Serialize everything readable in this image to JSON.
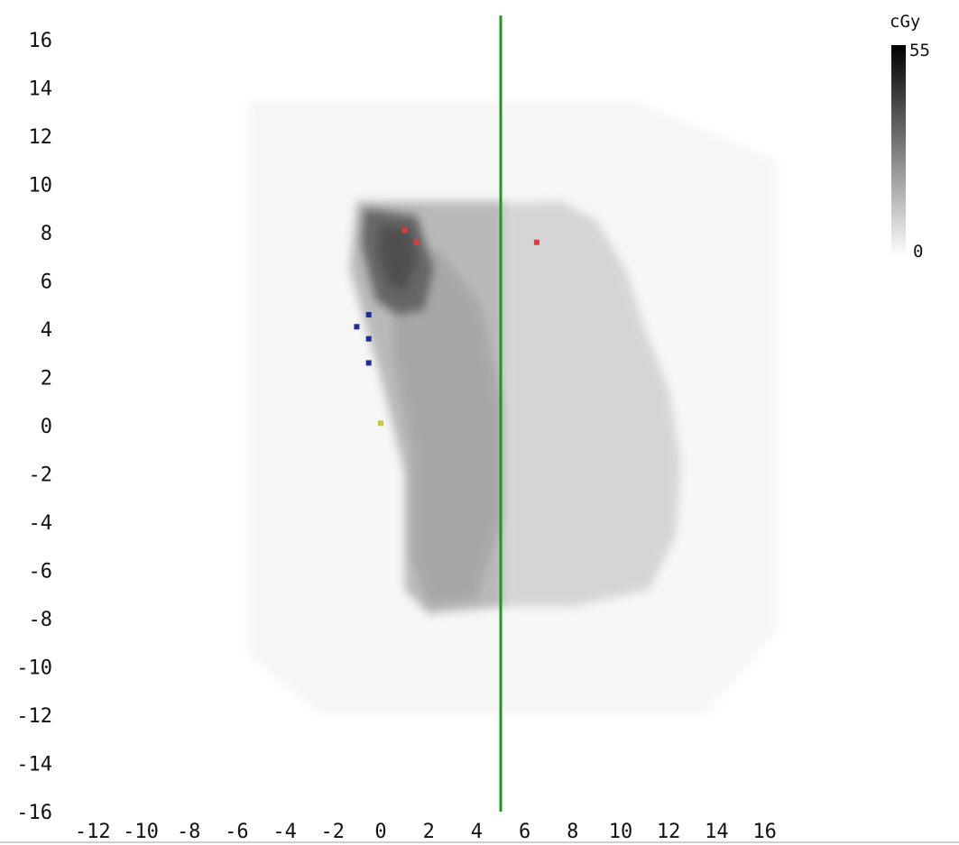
{
  "chart_data": {
    "type": "heatmap",
    "colorbar": {
      "unit": "cGy",
      "max_label": "55",
      "min_label": "0",
      "min": 0,
      "max": 55,
      "color_low": "#ffffff",
      "color_high": "#000000"
    },
    "x_ticks": [
      "-12",
      "-10",
      "-8",
      "-6",
      "-4",
      "-2",
      "0",
      "2",
      "4",
      "6",
      "8",
      "10",
      "12",
      "14",
      "16"
    ],
    "y_ticks": [
      "16",
      "14",
      "12",
      "10",
      "8",
      "6",
      "4",
      "2",
      "0",
      "-2",
      "-4",
      "-6",
      "-8",
      "-10",
      "-12",
      "-14",
      "-16"
    ],
    "xlim": [
      -12,
      16
    ],
    "ylim": [
      -16,
      16
    ],
    "grid": false,
    "dose_regions": [
      {
        "name": "outer-field",
        "dose": 2,
        "polygon": [
          [
            -5.5,
            13.5
          ],
          [
            10.5,
            13.5
          ],
          [
            16.5,
            11
          ],
          [
            16.5,
            -8.5
          ],
          [
            13.5,
            -12
          ],
          [
            -2.5,
            -12
          ],
          [
            -5.5,
            -9.5
          ],
          [
            -5.5,
            13.5
          ]
        ]
      },
      {
        "name": "lateral-lobe",
        "dose": 9,
        "polygon": [
          [
            5.2,
            9.2
          ],
          [
            7.5,
            9.3
          ],
          [
            9,
            8.5
          ],
          [
            10.2,
            6.5
          ],
          [
            11,
            4
          ],
          [
            12,
            1.5
          ],
          [
            12.5,
            -1.5
          ],
          [
            12.3,
            -4.5
          ],
          [
            11.2,
            -6.8
          ],
          [
            8,
            -7.5
          ],
          [
            5.2,
            -7.5
          ]
        ]
      },
      {
        "name": "medial-lobe",
        "dose": 15,
        "polygon": [
          [
            -1,
            9.3
          ],
          [
            5.2,
            9.3
          ],
          [
            5.2,
            -7.5
          ],
          [
            2,
            -7.8
          ],
          [
            1,
            -6.8
          ],
          [
            1,
            -2
          ],
          [
            0,
            2
          ],
          [
            -1.3,
            6.5
          ]
        ]
      },
      {
        "name": "medial-core",
        "dose": 19,
        "polygon": [
          [
            0.5,
            7.5
          ],
          [
            2.5,
            7.2
          ],
          [
            4.2,
            5
          ],
          [
            5,
            1
          ],
          [
            5,
            -4
          ],
          [
            4,
            -7.2
          ],
          [
            2,
            -7.4
          ],
          [
            1.3,
            -5.5
          ],
          [
            1.3,
            -1
          ],
          [
            0.5,
            3
          ]
        ]
      },
      {
        "name": "hot-spot",
        "dose": 33,
        "polygon": [
          [
            -0.7,
            9
          ],
          [
            1.5,
            8.7
          ],
          [
            2.2,
            6.5
          ],
          [
            1.8,
            4.8
          ],
          [
            0.7,
            4.6
          ],
          [
            -0.2,
            5.2
          ],
          [
            -0.8,
            7.5
          ]
        ]
      },
      {
        "name": "hot-spot-peak",
        "dose": 38,
        "polygon": [
          [
            0,
            8.3
          ],
          [
            1.2,
            8.2
          ],
          [
            1.5,
            6.8
          ],
          [
            1,
            5.6
          ],
          [
            0.3,
            5.9
          ],
          [
            -0.1,
            7.2
          ]
        ]
      }
    ],
    "line": {
      "x": 5,
      "y_range": [
        -16,
        17
      ],
      "color": "#1c9a1c"
    },
    "markers": [
      {
        "name": "red-marker",
        "x": 1.0,
        "y": 8.1,
        "color": "#e23a3a"
      },
      {
        "name": "red-marker",
        "x": 1.5,
        "y": 7.6,
        "color": "#e23a3a"
      },
      {
        "name": "red-marker",
        "x": 6.5,
        "y": 7.6,
        "color": "#e23a3a"
      },
      {
        "name": "blue-marker",
        "x": -0.5,
        "y": 4.6,
        "color": "#1f2d9c"
      },
      {
        "name": "blue-marker",
        "x": -1.0,
        "y": 4.1,
        "color": "#1f2d9c"
      },
      {
        "name": "blue-marker",
        "x": -0.5,
        "y": 3.6,
        "color": "#1f2d9c"
      },
      {
        "name": "blue-marker",
        "x": -0.5,
        "y": 2.6,
        "color": "#1f2d9c"
      },
      {
        "name": "yellow-marker",
        "x": 0.0,
        "y": 0.1,
        "color": "#c8c832"
      }
    ]
  }
}
